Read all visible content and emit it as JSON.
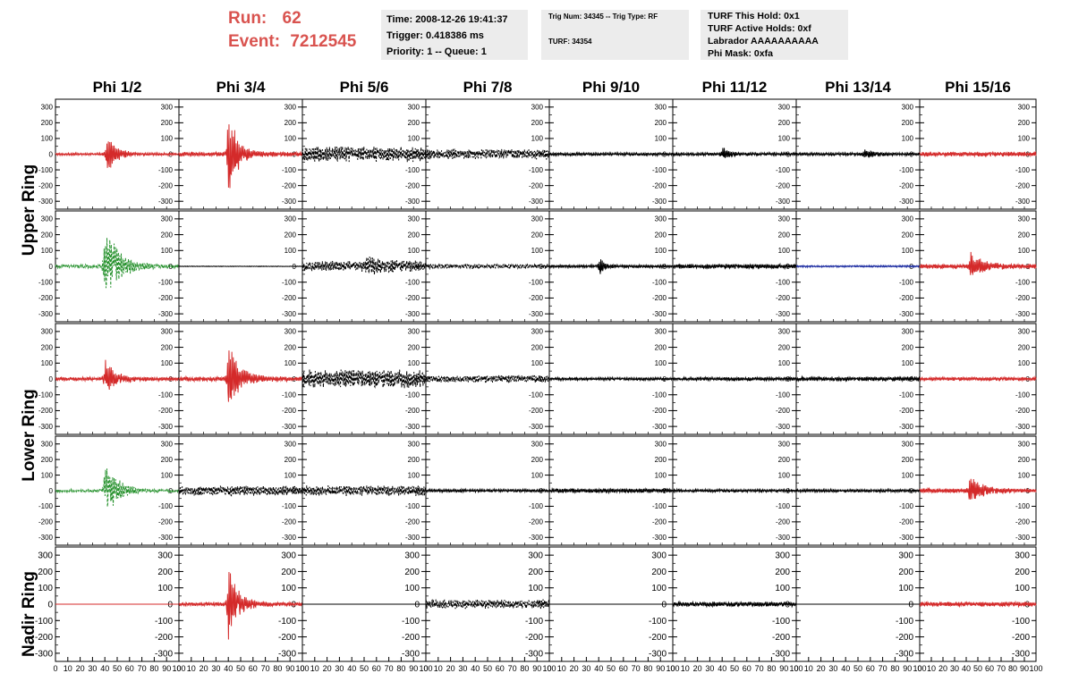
{
  "header": {
    "run_label": "Run:",
    "run_value": "62",
    "event_label": "Event:",
    "event_value": "7212545",
    "accent_color": "#d9534f"
  },
  "time_box": {
    "time": "Time: 2008-12-26 19:41:37",
    "trigger": "Trigger: 0.418386 ms",
    "priority": "Priority: 1 -- Queue: 1"
  },
  "trig_box": {
    "trig": "Trig Num: 34345 -- Trig Type: RF",
    "turf": "TURF: 34354"
  },
  "turf_box": {
    "hold": "TURF This Hold: 0x1",
    "active": "TURF Active Holds: 0xf",
    "labrador": "Labrador AAAAAAAAAA",
    "phimask": "Phi Mask: 0xfa"
  },
  "columns": [
    "Phi 1/2",
    "Phi 3/4",
    "Phi 5/6",
    "Phi 7/8",
    "Phi 9/10",
    "Phi 11/12",
    "Phi 13/14",
    "Phi 15/16"
  ],
  "ring_labels": {
    "upper": "Upper Ring",
    "lower": "Lower Ring",
    "nadir": "Nadir Ring"
  },
  "colors": {
    "red": "#d42a2a",
    "green": "#23902a",
    "blue": "#1a2aa0",
    "black": "#000000"
  },
  "chart_data": {
    "type": "line",
    "xlim": [
      0,
      100
    ],
    "ylim": [
      -350,
      350
    ],
    "x_ticks": [
      0,
      10,
      20,
      30,
      40,
      50,
      60,
      70,
      80,
      90,
      100
    ],
    "x_tick_labels": [
      "0",
      "10",
      "20",
      "30",
      "40",
      "50",
      "60",
      "70",
      "80",
      "90",
      "100"
    ],
    "y_ticks": [
      300,
      200,
      100,
      0,
      -100,
      -200,
      -300
    ],
    "y_tick_labels": [
      "300",
      "200",
      "100",
      "0",
      "-100",
      "-200",
      "-300"
    ],
    "panels": [
      {
        "row": 0,
        "col": 0,
        "color": "red",
        "dashed": false,
        "baseline": 8,
        "peak_x": 42,
        "peak_amp": 150,
        "decay": 7
      },
      {
        "row": 0,
        "col": 1,
        "color": "red",
        "dashed": false,
        "baseline": 15,
        "peak_x": 40,
        "peak_amp": 350,
        "decay": 6
      },
      {
        "row": 0,
        "col": 2,
        "color": "black",
        "dashed": true,
        "baseline": 55,
        "peak_x": 0,
        "peak_amp": 0,
        "decay": 0
      },
      {
        "row": 0,
        "col": 3,
        "color": "black",
        "dashed": true,
        "baseline": 35,
        "peak_x": 0,
        "peak_amp": 0,
        "decay": 0
      },
      {
        "row": 0,
        "col": 4,
        "color": "black",
        "dashed": false,
        "baseline": 10,
        "peak_x": 0,
        "peak_amp": 0,
        "decay": 0
      },
      {
        "row": 0,
        "col": 5,
        "color": "black",
        "dashed": false,
        "baseline": 10,
        "peak_x": 40,
        "peak_amp": 45,
        "decay": 5
      },
      {
        "row": 0,
        "col": 6,
        "color": "black",
        "dashed": false,
        "baseline": 10,
        "peak_x": 55,
        "peak_amp": 25,
        "decay": 8
      },
      {
        "row": 0,
        "col": 7,
        "color": "red",
        "dashed": false,
        "baseline": 15,
        "peak_x": 0,
        "peak_amp": 0,
        "decay": 0
      },
      {
        "row": 1,
        "col": 0,
        "color": "green",
        "dashed": true,
        "baseline": 12,
        "peak_x": 40,
        "peak_amp": 300,
        "decay": 10
      },
      {
        "row": 1,
        "col": 1,
        "color": "black",
        "dashed": false,
        "baseline": 2,
        "peak_x": 0,
        "peak_amp": 0,
        "decay": 0
      },
      {
        "row": 1,
        "col": 2,
        "color": "black",
        "dashed": true,
        "baseline": 35,
        "peak_x": 52,
        "peak_amp": 40,
        "decay": 14
      },
      {
        "row": 1,
        "col": 3,
        "color": "black",
        "dashed": true,
        "baseline": 15,
        "peak_x": 0,
        "peak_amp": 0,
        "decay": 0
      },
      {
        "row": 1,
        "col": 4,
        "color": "black",
        "dashed": false,
        "baseline": 10,
        "peak_x": 41,
        "peak_amp": 70,
        "decay": 3
      },
      {
        "row": 1,
        "col": 5,
        "color": "black",
        "dashed": false,
        "baseline": 15,
        "peak_x": 0,
        "peak_amp": 0,
        "decay": 0
      },
      {
        "row": 1,
        "col": 6,
        "color": "blue",
        "dashed": false,
        "baseline": 6,
        "peak_x": 0,
        "peak_amp": 0,
        "decay": 0
      },
      {
        "row": 1,
        "col": 7,
        "color": "red",
        "dashed": false,
        "baseline": 15,
        "peak_x": 44,
        "peak_amp": 80,
        "decay": 10
      },
      {
        "row": 2,
        "col": 0,
        "color": "red",
        "dashed": false,
        "baseline": 12,
        "peak_x": 40,
        "peak_amp": 120,
        "decay": 8
      },
      {
        "row": 2,
        "col": 1,
        "color": "red",
        "dashed": false,
        "baseline": 15,
        "peak_x": 40,
        "peak_amp": 250,
        "decay": 8
      },
      {
        "row": 2,
        "col": 2,
        "color": "black",
        "dashed": true,
        "baseline": 60,
        "peak_x": 0,
        "peak_amp": 0,
        "decay": 0
      },
      {
        "row": 2,
        "col": 3,
        "color": "black",
        "dashed": true,
        "baseline": 25,
        "peak_x": 0,
        "peak_amp": 0,
        "decay": 0
      },
      {
        "row": 2,
        "col": 4,
        "color": "black",
        "dashed": false,
        "baseline": 10,
        "peak_x": 0,
        "peak_amp": 0,
        "decay": 0
      },
      {
        "row": 2,
        "col": 5,
        "color": "black",
        "dashed": false,
        "baseline": 12,
        "peak_x": 0,
        "peak_amp": 0,
        "decay": 0
      },
      {
        "row": 2,
        "col": 6,
        "color": "black",
        "dashed": false,
        "baseline": 15,
        "peak_x": 0,
        "peak_amp": 0,
        "decay": 0
      },
      {
        "row": 2,
        "col": 7,
        "color": "red",
        "dashed": false,
        "baseline": 12,
        "peak_x": 0,
        "peak_amp": 0,
        "decay": 0
      },
      {
        "row": 3,
        "col": 0,
        "color": "green",
        "dashed": true,
        "baseline": 10,
        "peak_x": 40,
        "peak_amp": 220,
        "decay": 9
      },
      {
        "row": 3,
        "col": 1,
        "color": "black",
        "dashed": true,
        "baseline": 35,
        "peak_x": 0,
        "peak_amp": 0,
        "decay": 0
      },
      {
        "row": 3,
        "col": 2,
        "color": "black",
        "dashed": true,
        "baseline": 35,
        "peak_x": 0,
        "peak_amp": 0,
        "decay": 0
      },
      {
        "row": 3,
        "col": 3,
        "color": "black",
        "dashed": false,
        "baseline": 10,
        "peak_x": 0,
        "peak_amp": 0,
        "decay": 0
      },
      {
        "row": 3,
        "col": 4,
        "color": "black",
        "dashed": false,
        "baseline": 15,
        "peak_x": 0,
        "peak_amp": 0,
        "decay": 0
      },
      {
        "row": 3,
        "col": 5,
        "color": "black",
        "dashed": false,
        "baseline": 10,
        "peak_x": 0,
        "peak_amp": 0,
        "decay": 0
      },
      {
        "row": 3,
        "col": 6,
        "color": "black",
        "dashed": false,
        "baseline": 10,
        "peak_x": 0,
        "peak_amp": 0,
        "decay": 0
      },
      {
        "row": 3,
        "col": 7,
        "color": "red",
        "dashed": false,
        "baseline": 15,
        "peak_x": 43,
        "peak_amp": 90,
        "decay": 10
      },
      {
        "row": 4,
        "col": 0,
        "color": "red",
        "dashed": false,
        "baseline": 0,
        "peak_x": 0,
        "peak_amp": 0,
        "decay": 0
      },
      {
        "row": 4,
        "col": 1,
        "color": "red",
        "dashed": false,
        "baseline": 12,
        "peak_x": 40,
        "peak_amp": 230,
        "decay": 8
      },
      {
        "row": 4,
        "col": 2,
        "color": "black",
        "dashed": false,
        "baseline": 0,
        "peak_x": 0,
        "peak_amp": 0,
        "decay": 0
      },
      {
        "row": 4,
        "col": 3,
        "color": "black",
        "dashed": true,
        "baseline": 30,
        "peak_x": 0,
        "peak_amp": 0,
        "decay": 0
      },
      {
        "row": 4,
        "col": 4,
        "color": "black",
        "dashed": false,
        "baseline": 0,
        "peak_x": 0,
        "peak_amp": 0,
        "decay": 0
      },
      {
        "row": 4,
        "col": 5,
        "color": "black",
        "dashed": false,
        "baseline": 15,
        "peak_x": 0,
        "peak_amp": 0,
        "decay": 0
      },
      {
        "row": 4,
        "col": 6,
        "color": "black",
        "dashed": false,
        "baseline": 0,
        "peak_x": 0,
        "peak_amp": 0,
        "decay": 0
      },
      {
        "row": 4,
        "col": 7,
        "color": "red",
        "dashed": false,
        "baseline": 15,
        "peak_x": 0,
        "peak_amp": 0,
        "decay": 0
      }
    ]
  }
}
